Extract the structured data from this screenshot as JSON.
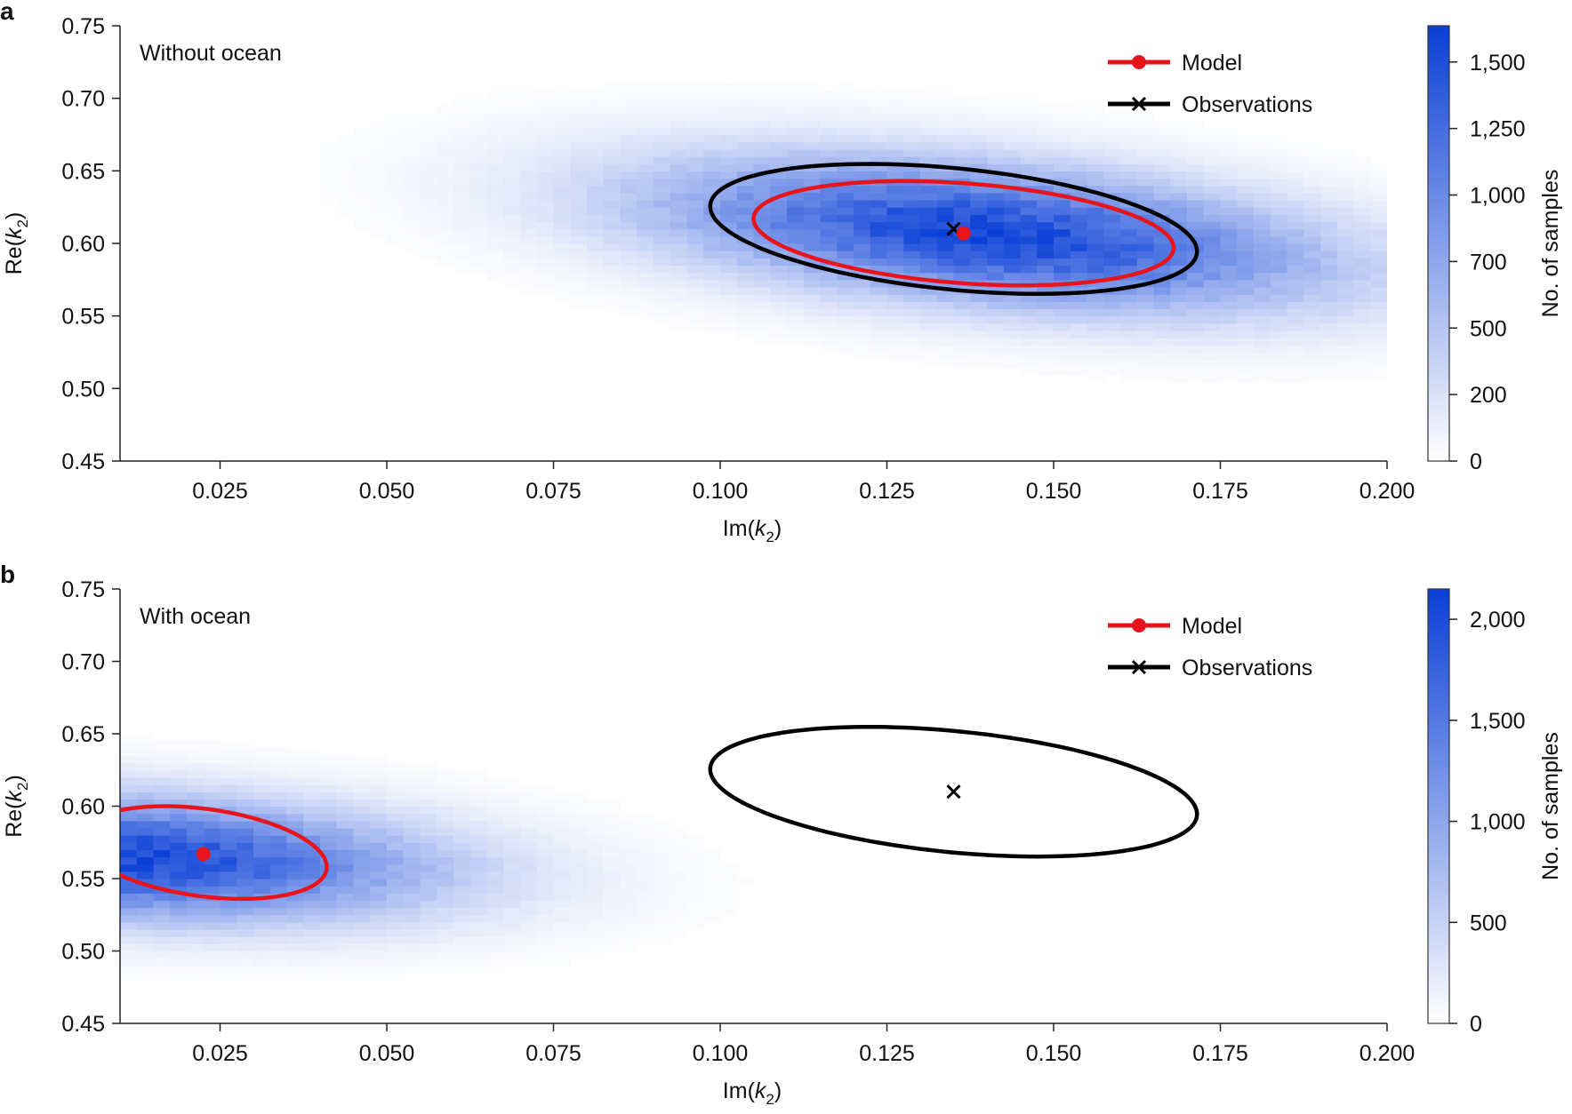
{
  "chart_data": [
    {
      "panel": "a",
      "type": "heatmap",
      "title": "Without ocean",
      "xlabel": {
        "prefix": "Im(",
        "var": "k",
        "sub": "2",
        "suffix": ")"
      },
      "ylabel": {
        "prefix": "Re(",
        "var": "k",
        "sub": "2",
        "suffix": ")"
      },
      "xlim": [
        0.01,
        0.2
      ],
      "ylim": [
        0.45,
        0.75
      ],
      "xticks": [
        "0.025",
        "0.050",
        "0.075",
        "0.100",
        "0.125",
        "0.150",
        "0.175",
        "0.200"
      ],
      "yticks": [
        "0.45",
        "0.50",
        "0.55",
        "0.60",
        "0.65",
        "0.70",
        "0.75"
      ],
      "colorbar": {
        "label": "No. of samples",
        "ticks": [
          "0",
          "200",
          "500",
          "700",
          "1,000",
          "1,250",
          "1,500"
        ],
        "scale": "nonlinear",
        "max": 1620
      },
      "density": {
        "center": [
          0.14,
          0.607
        ],
        "spread": [
          0.03,
          0.028
        ],
        "slope": -0.42,
        "xmax": 0.2
      },
      "legend": [
        {
          "name": "Model",
          "color": "#e8141c",
          "marker": "dot"
        },
        {
          "name": "Observations",
          "color": "#000000",
          "marker": "cross"
        }
      ],
      "observation": {
        "point": [
          0.135,
          0.61
        ],
        "ellipse": {
          "center": [
            0.135,
            0.61
          ],
          "u": [
            0.0365,
            -0.0155
          ],
          "v": [
            0.0,
            0.042
          ]
        }
      },
      "model": {
        "point": [
          0.1365,
          0.607
        ],
        "ellipse": {
          "center": [
            0.1365,
            0.607
          ],
          "u": [
            0.0315,
            -0.01
          ],
          "v": [
            0.0,
            0.0345
          ]
        }
      }
    },
    {
      "panel": "b",
      "type": "heatmap",
      "title": "With ocean",
      "xlabel": {
        "prefix": "Im(",
        "var": "k",
        "sub": "2",
        "suffix": ")"
      },
      "ylabel": {
        "prefix": "Re(",
        "var": "k",
        "sub": "2",
        "suffix": ")"
      },
      "xlim": [
        0.01,
        0.2
      ],
      "ylim": [
        0.45,
        0.75
      ],
      "xticks": [
        "0.025",
        "0.050",
        "0.075",
        "0.100",
        "0.125",
        "0.150",
        "0.175",
        "0.200"
      ],
      "yticks": [
        "0.45",
        "0.50",
        "0.55",
        "0.60",
        "0.65",
        "0.70",
        "0.75"
      ],
      "colorbar": {
        "label": "No. of samples",
        "ticks": [
          "0",
          "500",
          "1,000",
          "1,500",
          "2,000"
        ],
        "scale": "linear",
        "max": 2150
      },
      "density": {
        "center": [
          0.01,
          0.565
        ],
        "spread": [
          0.028,
          0.025
        ],
        "slope": -0.2,
        "xmax": 0.2
      },
      "legend": [
        {
          "name": "Model",
          "color": "#e8141c",
          "marker": "dot"
        },
        {
          "name": "Observations",
          "color": "#000000",
          "marker": "cross"
        }
      ],
      "observation": {
        "point": [
          0.135,
          0.61
        ],
        "ellipse": {
          "center": [
            0.135,
            0.61
          ],
          "u": [
            0.0365,
            -0.0155
          ],
          "v": [
            0.0,
            0.042
          ]
        }
      },
      "model": {
        "point": [
          0.0225,
          0.567
        ],
        "ellipse": {
          "center": [
            0.0225,
            0.568
          ],
          "u": [
            0.0185,
            -0.01
          ],
          "v": [
            0.0,
            0.0304
          ]
        }
      }
    }
  ],
  "colors": {
    "heat_max": "#0a3fd6",
    "model": "#e8141c",
    "observations": "#000000"
  }
}
